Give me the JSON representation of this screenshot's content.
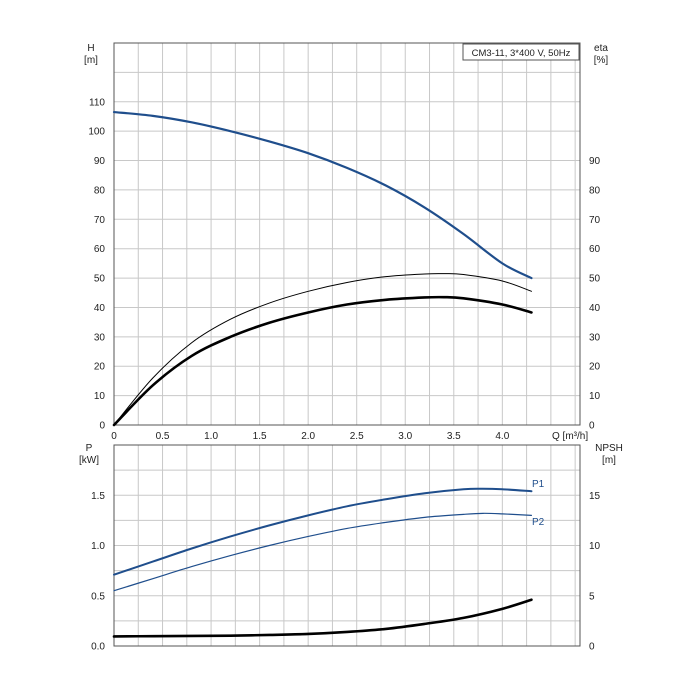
{
  "chart_data": [
    {
      "type": "line",
      "title": "CM3-11, 3*400 V, 50Hz",
      "ylabel": "H",
      "yunit": "[m]",
      "y2label": "eta",
      "y2unit": "[%]",
      "xlabel": "Q [m³/h]",
      "xlim": [
        0,
        4.8
      ],
      "ylim": [
        0,
        130
      ],
      "y2lim": [
        0,
        130
      ],
      "xticks": [
        0,
        0.5,
        1.0,
        1.5,
        2.0,
        2.5,
        3.0,
        3.5,
        4.0
      ],
      "xticklabels": [
        "0",
        "0.5",
        "1.0",
        "1.5",
        "2.0",
        "2.5",
        "3.0",
        "3.5",
        "4.0"
      ],
      "yticks": [
        0,
        10,
        20,
        30,
        40,
        50,
        60,
        70,
        80,
        90,
        100,
        110
      ],
      "yticklabels": [
        "0",
        "10",
        "20",
        "30",
        "40",
        "50",
        "60",
        "70",
        "80",
        "90",
        "100",
        "110"
      ],
      "y2ticks": [
        0,
        10,
        20,
        30,
        40,
        50,
        60,
        70,
        80,
        90
      ],
      "y2ticklabels": [
        "0",
        "10",
        "20",
        "30",
        "40",
        "50",
        "60",
        "70",
        "80",
        "90"
      ],
      "grid": true,
      "series": [
        {
          "color": "#1f4e8c",
          "axis": "left",
          "x": [
            0,
            0.4,
            0.8,
            1.2,
            1.6,
            2.0,
            2.4,
            2.8,
            3.2,
            3.6,
            4.0,
            4.3
          ],
          "y": [
            106.5,
            105.2,
            103,
            100,
            96.5,
            92.5,
            87.5,
            81.5,
            74,
            65,
            55,
            50
          ]
        },
        {
          "color": "#000000",
          "axis": "right",
          "x": [
            0,
            0.4,
            0.8,
            1.2,
            1.6,
            2.0,
            2.4,
            2.8,
            3.2,
            3.4,
            3.6,
            4.0,
            4.3
          ],
          "y": [
            0,
            16,
            28,
            36,
            41.5,
            45.5,
            48.5,
            50.5,
            51.4,
            51.5,
            51.2,
            49,
            45.5
          ]
        },
        {
          "color": "#000000",
          "axis": "right",
          "x": [
            0,
            0.4,
            0.8,
            1.2,
            1.6,
            2.0,
            2.4,
            2.8,
            3.2,
            3.4,
            3.6,
            4.0,
            4.3
          ],
          "y": [
            0,
            13.5,
            23.5,
            30,
            34.8,
            38.3,
            41,
            42.6,
            43.4,
            43.5,
            43.1,
            41,
            38.3
          ]
        }
      ]
    },
    {
      "type": "line",
      "ylabel": "P",
      "yunit": "[kW]",
      "y2label": "NPSH",
      "y2unit": "[m]",
      "xlim": [
        0,
        4.8
      ],
      "ylim": [
        0,
        2.0
      ],
      "y2lim": [
        0,
        20
      ],
      "xticks": [
        0,
        0.5,
        1.0,
        1.5,
        2.0,
        2.5,
        3.0,
        3.5,
        4.0
      ],
      "yticks": [
        0,
        0.5,
        1.0,
        1.5
      ],
      "yticklabels": [
        "0.0",
        "0.5",
        "1.0",
        "1.5"
      ],
      "y2ticks": [
        0,
        5,
        10,
        15
      ],
      "y2ticklabels": [
        "0",
        "5",
        "10",
        "15"
      ],
      "grid": true,
      "series": [
        {
          "name": "P1",
          "color": "#1f4e8c",
          "axis": "left",
          "x": [
            0,
            0.4,
            0.8,
            1.2,
            1.6,
            2.0,
            2.4,
            2.8,
            3.2,
            3.6,
            3.8,
            4.0,
            4.3
          ],
          "y": [
            0.71,
            0.84,
            0.97,
            1.09,
            1.2,
            1.3,
            1.39,
            1.46,
            1.52,
            1.56,
            1.565,
            1.56,
            1.54
          ]
        },
        {
          "name": "P2",
          "color": "#1f4e8c",
          "axis": "left",
          "x": [
            0,
            0.4,
            0.8,
            1.2,
            1.6,
            2.0,
            2.4,
            2.8,
            3.2,
            3.6,
            3.8,
            4.0,
            4.3
          ],
          "y": [
            0.55,
            0.67,
            0.79,
            0.9,
            1.0,
            1.09,
            1.17,
            1.23,
            1.28,
            1.31,
            1.32,
            1.315,
            1.3
          ]
        },
        {
          "color": "#000000",
          "axis": "right",
          "x": [
            0,
            0.4,
            0.8,
            1.2,
            1.6,
            2.0,
            2.4,
            2.8,
            3.2,
            3.6,
            4.0,
            4.3
          ],
          "y": [
            0.95,
            0.98,
            1.0,
            1.03,
            1.1,
            1.2,
            1.4,
            1.7,
            2.2,
            2.8,
            3.7,
            4.6
          ]
        }
      ]
    }
  ]
}
